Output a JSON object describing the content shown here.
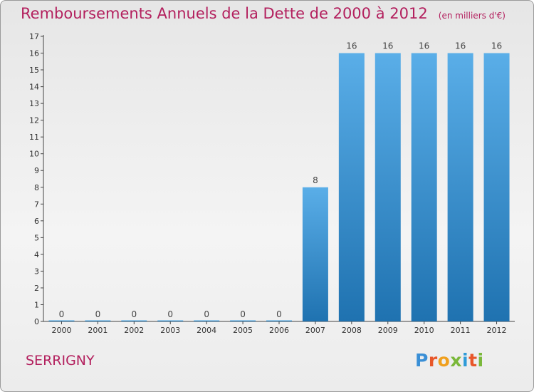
{
  "title": "Remboursements Annuels de la Dette de 2000 à 2012",
  "unit": "(en milliers d'€)",
  "commune": "SERRIGNY",
  "logo": {
    "letters": [
      "P",
      "r",
      "o",
      "x",
      "i",
      "t",
      "i"
    ],
    "colors": [
      "#3a8fd6",
      "#e8572a",
      "#f0a01e",
      "#7ab83a",
      "#2f9bd8",
      "#e8572a",
      "#7ab83a"
    ]
  },
  "colors": {
    "bar_top": "#5aaee8",
    "bar_bottom": "#1f72b0",
    "title": "#b3205e"
  },
  "chart_data": {
    "type": "bar",
    "categories": [
      "2000",
      "2001",
      "2002",
      "2003",
      "2004",
      "2005",
      "2006",
      "2007",
      "2008",
      "2009",
      "2010",
      "2011",
      "2012"
    ],
    "values": [
      0,
      0,
      0,
      0,
      0,
      0,
      0,
      8,
      16,
      16,
      16,
      16,
      16
    ],
    "data_labels": [
      "0",
      "0",
      "0",
      "0",
      "0",
      "0",
      "0",
      "8",
      "16",
      "16",
      "16",
      "16",
      "16"
    ],
    "y_ticks": [
      "0",
      "1",
      "2",
      "3",
      "4",
      "5",
      "6",
      "7",
      "8",
      "9",
      "10",
      "11",
      "12",
      "13",
      "14",
      "15",
      "16",
      "17"
    ],
    "ylim": [
      0,
      17
    ],
    "grid": false,
    "legend": "none"
  }
}
